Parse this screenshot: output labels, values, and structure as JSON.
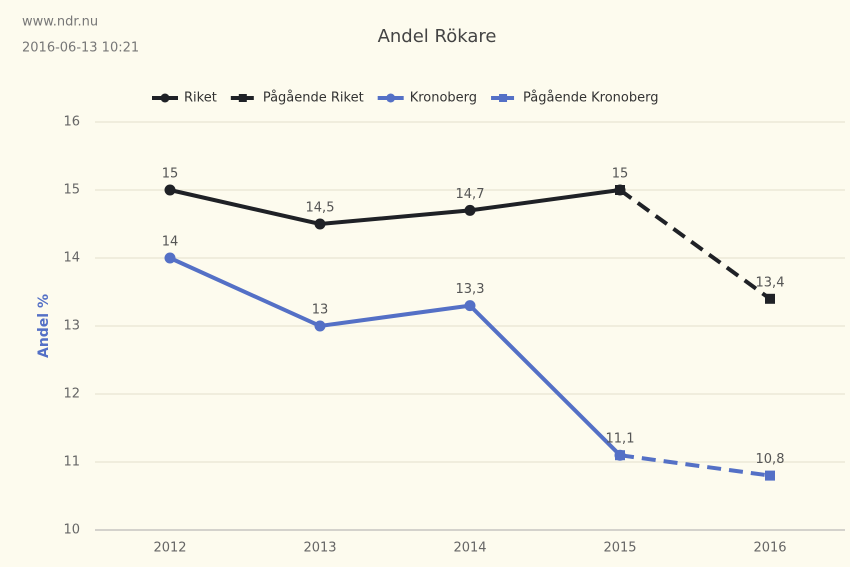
{
  "chart_data": {
    "type": "line",
    "title": "Andel Rökare",
    "annotations": [
      "www.ndr.nu",
      "2016-06-13 10:21"
    ],
    "y_label": "Andel %",
    "categories": [
      "2012",
      "2013",
      "2014",
      "2015",
      "2016"
    ],
    "series": [
      {
        "name": "Riket",
        "color": "#1f2126",
        "dashed": false,
        "values": [
          15,
          14.5,
          14.7,
          15,
          null
        ],
        "value_labels": [
          "15",
          "14,5",
          "14,7",
          "15",
          null
        ]
      },
      {
        "name": "Pågående Riket",
        "color": "#1f2126",
        "dashed": true,
        "values": [
          null,
          null,
          null,
          15,
          13.4
        ],
        "value_labels": [
          null,
          null,
          null,
          null,
          "13,4"
        ]
      },
      {
        "name": "Kronoberg",
        "color": "#5470c6",
        "dashed": false,
        "values": [
          14,
          13,
          13.3,
          11.1,
          null
        ],
        "value_labels": [
          "14",
          "13",
          "13,3",
          "11,1",
          null
        ]
      },
      {
        "name": "Pågående Kronoberg",
        "color": "#5470c6",
        "dashed": true,
        "values": [
          null,
          null,
          null,
          11.1,
          10.8
        ],
        "value_labels": [
          null,
          null,
          null,
          null,
          "10,8"
        ]
      }
    ],
    "ylim": [
      10,
      16
    ],
    "yticks": [
      10,
      11,
      12,
      13,
      14,
      15,
      16
    ],
    "grid": true
  }
}
